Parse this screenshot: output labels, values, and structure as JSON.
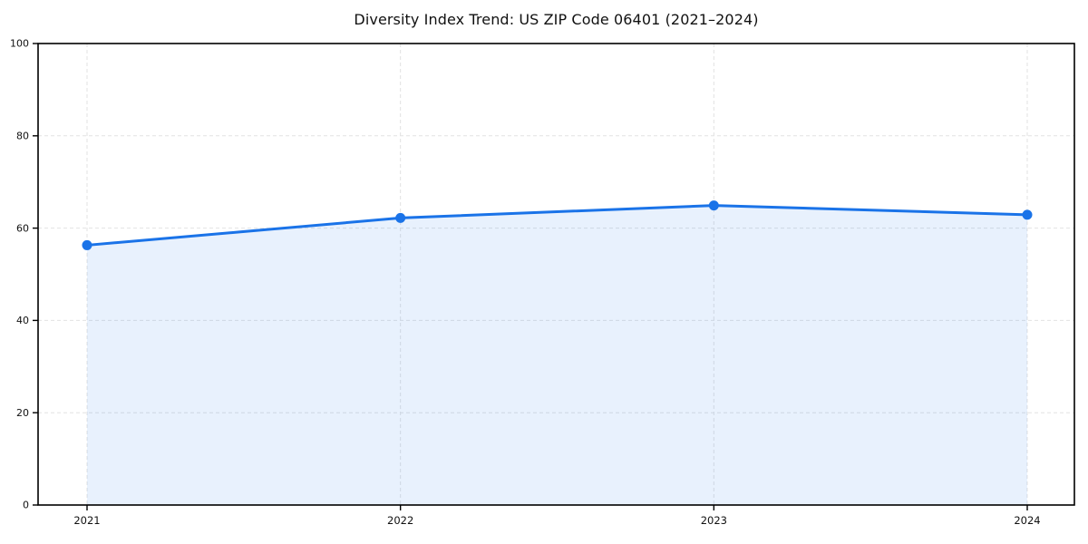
{
  "page": {
    "background_color": "#ffffff"
  },
  "chart_data": {
    "type": "area",
    "title": "Diversity Index Trend: US ZIP Code 06401 (2021–2024)",
    "categories": [
      "2021",
      "2022",
      "2023",
      "2024"
    ],
    "series": [
      {
        "name": "Diversity Index",
        "values": [
          56.3,
          62.2,
          64.9,
          62.9
        ]
      }
    ],
    "xlabel": "",
    "ylabel": "",
    "ylim": [
      0,
      100
    ],
    "yticks": [
      0,
      20,
      40,
      60,
      80,
      100
    ],
    "grid": "dashed horizontal and vertical gridlines",
    "legend_position": "none",
    "line_color": "#1a73e8",
    "marker_color": "#1a73e8",
    "fill_color": "#1a73e8",
    "fill_opacity": 0.1,
    "grid_color": "#e2e2e2",
    "axis_color": "#000000",
    "tick_label_color": "#111111"
  }
}
